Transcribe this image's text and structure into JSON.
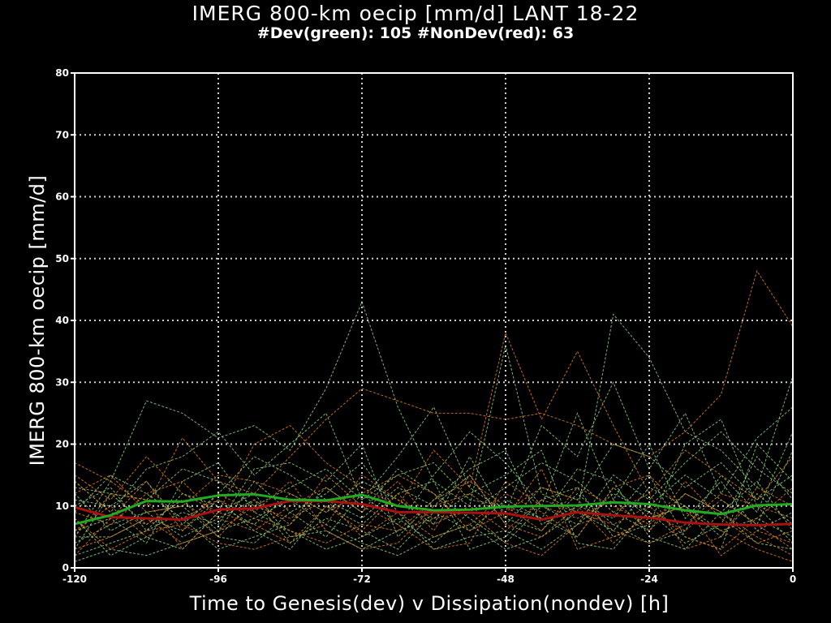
{
  "title": "IMERG 800-km oecip [mm/d] LANT 18-22",
  "subtitle": "#Dev(green): 105 #NonDev(red): 63",
  "chart_data": {
    "type": "line",
    "title": "IMERG 800-km oecip [mm/d] LANT 18-22",
    "subtitle": "#Dev(green): 105 #NonDev(red): 63",
    "xlabel": "Time to Genesis(dev) v Dissipation(nondev) [h]",
    "ylabel": "IMERG 800-km oecip [mm/d]",
    "xlim": [
      -120,
      0
    ],
    "ylim": [
      0,
      80
    ],
    "xticks": [
      -120,
      -96,
      -72,
      -48,
      -24,
      0
    ],
    "yticks": [
      0,
      10,
      20,
      30,
      40,
      50,
      60,
      70,
      80
    ],
    "grid": true,
    "colors": {
      "dev": "#22aa22",
      "nondev": "#aa1111",
      "dev_member": "#8fd080",
      "nondev_member": "#e08020",
      "axis": "#ffffff",
      "grid": "#cfcfcf"
    },
    "x": [
      -120,
      -114,
      -108,
      -102,
      -96,
      -90,
      -84,
      -78,
      -72,
      -66,
      -60,
      -54,
      -48,
      -42,
      -36,
      -30,
      -24,
      -18,
      -12,
      -6,
      0
    ],
    "series": [
      {
        "name": "",
        "role": "dev_mean",
        "values": [
          7.1,
          8.5,
          10.8,
          10.7,
          11.7,
          11.9,
          11.0,
          10.9,
          11.8,
          10.0,
          9.3,
          9.4,
          9.9,
          10.0,
          10.1,
          10.6,
          10.3,
          9.3,
          8.7,
          10.1,
          10.3
        ]
      },
      {
        "name": "",
        "role": "nondev_mean",
        "values": [
          9.8,
          8.2,
          8.0,
          7.8,
          9.4,
          9.6,
          10.8,
          10.8,
          10.3,
          9.0,
          9.0,
          8.9,
          8.8,
          7.8,
          9.0,
          8.5,
          8.1,
          7.3,
          7.0,
          6.9,
          7.1
        ]
      },
      {
        "name": "",
        "role": "dev_member",
        "values": [
          5,
          14,
          27,
          25,
          21,
          23,
          19,
          29,
          43,
          26,
          14,
          10,
          36,
          12,
          9,
          41,
          34,
          22,
          19,
          13,
          31
        ]
      },
      {
        "name": "",
        "role": "dev_member",
        "values": [
          14,
          9,
          16,
          18,
          22,
          15,
          20,
          25,
          11,
          18,
          26,
          13,
          9,
          23,
          18,
          30,
          16,
          25,
          12,
          21,
          26
        ]
      },
      {
        "name": "",
        "role": "dev_member",
        "values": [
          3,
          12,
          7,
          11,
          6,
          14,
          9,
          5,
          12,
          7,
          15,
          22,
          17,
          10,
          25,
          11,
          20,
          8,
          14,
          6,
          9
        ]
      },
      {
        "name": "",
        "role": "dev_member",
        "values": [
          12,
          6,
          9,
          5,
          8,
          11,
          4,
          8,
          6,
          3,
          9,
          6,
          11,
          8,
          5,
          13,
          8,
          10,
          5,
          12,
          7
        ]
      },
      {
        "name": "",
        "role": "dev_member",
        "values": [
          2,
          4,
          6,
          12,
          10,
          7,
          12,
          9,
          14,
          11,
          7,
          18,
          8,
          6,
          12,
          7,
          4,
          6,
          15,
          9,
          22
        ]
      },
      {
        "name": "",
        "role": "dev_member",
        "values": [
          9,
          15,
          12,
          8,
          3,
          5,
          7,
          13,
          9,
          16,
          12,
          8,
          4,
          10,
          7,
          15,
          11,
          17,
          22,
          16,
          12
        ]
      },
      {
        "name": "",
        "role": "dev_member",
        "values": [
          6,
          8,
          4,
          14,
          17,
          9,
          6,
          3,
          5,
          8,
          4,
          9,
          13,
          17,
          14,
          9,
          6,
          12,
          9,
          4,
          3
        ]
      },
      {
        "name": "",
        "role": "dev_member",
        "values": [
          1,
          3,
          2,
          4,
          6,
          8,
          11,
          7,
          4,
          2,
          5,
          7,
          3,
          5,
          9,
          6,
          13,
          10,
          6,
          8,
          5
        ]
      },
      {
        "name": "",
        "role": "dev_member",
        "values": [
          11,
          10,
          14,
          7,
          12,
          18,
          15,
          11,
          8,
          13,
          10,
          15,
          7,
          13,
          11,
          20,
          18,
          13,
          17,
          11,
          15
        ]
      },
      {
        "name": "",
        "role": "dev_member",
        "values": [
          4,
          7,
          9,
          10,
          5,
          4,
          9,
          12,
          17,
          9,
          3,
          5,
          6,
          3,
          7,
          12,
          9,
          4,
          7,
          18,
          11
        ]
      },
      {
        "name": "",
        "role": "dev_member",
        "values": [
          8,
          2,
          5,
          3,
          9,
          12,
          5,
          6,
          3,
          6,
          8,
          12,
          15,
          19,
          4,
          3,
          10,
          15,
          11,
          7,
          19
        ]
      },
      {
        "name": "",
        "role": "dev_member",
        "values": [
          13,
          12,
          11,
          16,
          14,
          10,
          13,
          16,
          11,
          15,
          17,
          11,
          10,
          8,
          16,
          14,
          5,
          3,
          9,
          14,
          6
        ]
      },
      {
        "name": "",
        "role": "dev_member",
        "values": [
          5,
          5,
          8,
          6,
          11,
          6,
          3,
          10,
          7,
          12,
          14,
          3,
          5,
          11,
          13,
          5,
          7,
          20,
          24,
          10,
          4
        ]
      },
      {
        "name": "",
        "role": "dev_member",
        "values": [
          10,
          13,
          6,
          9,
          7,
          16,
          17,
          14,
          20,
          5,
          11,
          16,
          19,
          7,
          10,
          8,
          15,
          5,
          3,
          20,
          14
        ]
      },
      {
        "name": "",
        "role": "nondev_member",
        "values": [
          17,
          14,
          10,
          21,
          14,
          12,
          18,
          24,
          29,
          27,
          25,
          25,
          24,
          25,
          23,
          20,
          18,
          22,
          28,
          48,
          39
        ]
      },
      {
        "name": "",
        "role": "nondev_member",
        "values": [
          15,
          11,
          18,
          12,
          9,
          20,
          23,
          17,
          13,
          10,
          19,
          13,
          38,
          24,
          35,
          23,
          12,
          19,
          15,
          11,
          18
        ]
      },
      {
        "name": "",
        "role": "nondev_member",
        "values": [
          9,
          7,
          12,
          14,
          8,
          6,
          10,
          13,
          9,
          14,
          7,
          10,
          6,
          11,
          9,
          7,
          10,
          5,
          3,
          8,
          13
        ]
      },
      {
        "name": "",
        "role": "nondev_member",
        "values": [
          6,
          10,
          5,
          8,
          11,
          8,
          6,
          4,
          7,
          6,
          11,
          14,
          10,
          6,
          13,
          10,
          7,
          12,
          9,
          5,
          2
        ]
      },
      {
        "name": "",
        "role": "nondev_member",
        "values": [
          3,
          5,
          8,
          4,
          6,
          10,
          8,
          11,
          5,
          9,
          5,
          7,
          12,
          9,
          5,
          13,
          15,
          9,
          6,
          3,
          1
        ]
      },
      {
        "name": "",
        "role": "nondev_member",
        "values": [
          12,
          15,
          9,
          10,
          15,
          14,
          12,
          9,
          12,
          15,
          12,
          6,
          9,
          13,
          11,
          6,
          4,
          7,
          12,
          10,
          8
        ]
      },
      {
        "name": "",
        "role": "nondev_member",
        "values": [
          8,
          3,
          6,
          7,
          4,
          3,
          5,
          7,
          15,
          11,
          8,
          9,
          4,
          2,
          7,
          9,
          12,
          3,
          5,
          13,
          10
        ]
      },
      {
        "name": "",
        "role": "nondev_member",
        "values": [
          2,
          8,
          14,
          6,
          12,
          9,
          14,
          6,
          3,
          4,
          10,
          12,
          8,
          16,
          3,
          5,
          8,
          10,
          2,
          6,
          4
        ]
      },
      {
        "name": "",
        "role": "nondev_member",
        "values": [
          14,
          9,
          7,
          11,
          5,
          11,
          7,
          15,
          10,
          7,
          3,
          4,
          14,
          10,
          8,
          11,
          6,
          14,
          8,
          4,
          6
        ]
      },
      {
        "name": "",
        "role": "nondev_member",
        "values": [
          5,
          12,
          11,
          3,
          9,
          7,
          4,
          10,
          6,
          12,
          6,
          15,
          7,
          5,
          10,
          4,
          9,
          6,
          11,
          7,
          3
        ]
      }
    ]
  }
}
